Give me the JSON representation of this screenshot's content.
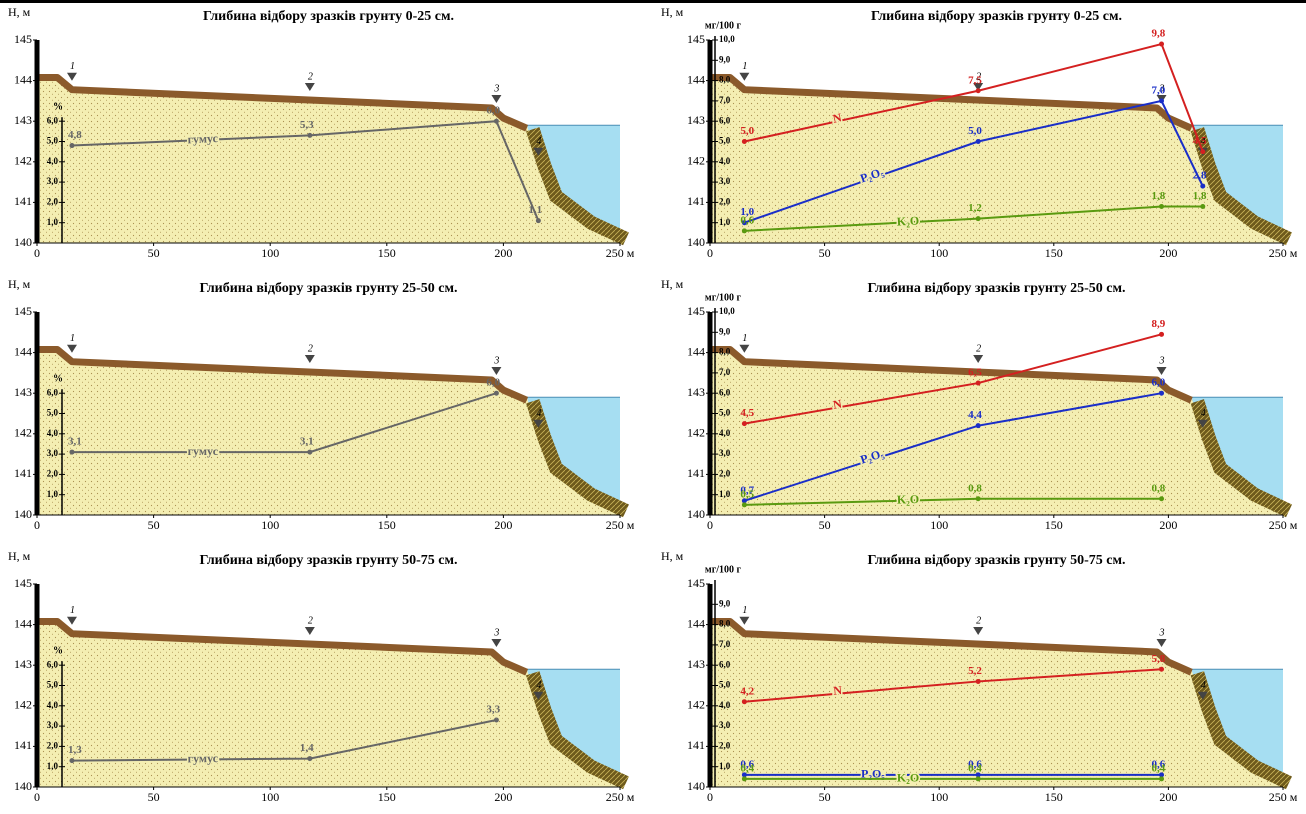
{
  "chart_data": [
    {
      "type": "line",
      "title": "Глибина відбору зразків грунту 0-25 см.",
      "y_label": "Н, м",
      "y2_label": "%",
      "xlim": [
        0,
        250
      ],
      "xticks": [
        0,
        50,
        100,
        150,
        200,
        {
          "value": 250,
          "label": "250 м"
        }
      ],
      "ylim": [
        140,
        145
      ],
      "yticks": [
        140,
        141,
        142,
        143,
        144,
        145
      ],
      "y2lim": [
        0,
        6
      ],
      "y2ticks": [
        {
          "value": 1,
          "label": "1,0"
        },
        {
          "value": 2,
          "label": "2,0"
        },
        {
          "value": 3,
          "label": "3,0"
        },
        {
          "value": 4,
          "label": "4,0"
        },
        {
          "value": 5,
          "label": "5,0"
        },
        {
          "value": 6,
          "label": "6,0"
        }
      ],
      "stations": [
        {
          "label": "1",
          "x": 15
        },
        {
          "label": "2",
          "x": 117
        },
        {
          "label": "3",
          "x": 197
        },
        {
          "label": "4",
          "x": 215
        }
      ],
      "x": [
        15,
        117,
        197,
        215
      ],
      "series": [
        {
          "name": "гумус",
          "color": "#666666",
          "axis": "y2",
          "values": [
            4.8,
            5.3,
            6.0,
            1.1
          ],
          "value_labels": [
            "4,8",
            "5,3",
            "6,0",
            "1,1"
          ]
        }
      ]
    },
    {
      "type": "line",
      "title": "Глибина відбору зразків грунту 25-50 см.",
      "y_label": "Н, м",
      "y2_label": "%",
      "xlim": [
        0,
        250
      ],
      "xticks": [
        0,
        50,
        100,
        150,
        200,
        {
          "value": 250,
          "label": "250 м"
        }
      ],
      "ylim": [
        140,
        145
      ],
      "yticks": [
        140,
        141,
        142,
        143,
        144,
        145
      ],
      "y2lim": [
        0,
        6
      ],
      "y2ticks": [
        {
          "value": 1,
          "label": "1,0"
        },
        {
          "value": 2,
          "label": "2,0"
        },
        {
          "value": 3,
          "label": "3,0"
        },
        {
          "value": 4,
          "label": "4,0"
        },
        {
          "value": 5,
          "label": "5,0"
        },
        {
          "value": 6,
          "label": "6,0"
        }
      ],
      "stations": [
        {
          "label": "1",
          "x": 15
        },
        {
          "label": "2",
          "x": 117
        },
        {
          "label": "3",
          "x": 197
        },
        {
          "label": "4",
          "x": 215
        }
      ],
      "x": [
        15,
        117,
        197
      ],
      "series": [
        {
          "name": "гумус",
          "color": "#666666",
          "axis": "y2",
          "values": [
            3.1,
            3.1,
            6.0
          ],
          "value_labels": [
            "3,1",
            "3,1",
            "6,0"
          ]
        }
      ]
    },
    {
      "type": "line",
      "title": "Глибина відбору зразків грунту 50-75 см.",
      "y_label": "Н, м",
      "y2_label": "%",
      "xlim": [
        0,
        250
      ],
      "xticks": [
        0,
        50,
        100,
        150,
        200,
        {
          "value": 250,
          "label": "250 м"
        }
      ],
      "ylim": [
        140,
        145
      ],
      "yticks": [
        140,
        141,
        142,
        143,
        144,
        145
      ],
      "y2lim": [
        0,
        6
      ],
      "y2ticks": [
        {
          "value": 1,
          "label": "1,0"
        },
        {
          "value": 2,
          "label": "2,0"
        },
        {
          "value": 3,
          "label": "3,0"
        },
        {
          "value": 4,
          "label": "4,0"
        },
        {
          "value": 5,
          "label": "5,0"
        },
        {
          "value": 6,
          "label": "6,0"
        }
      ],
      "stations": [
        {
          "label": "1",
          "x": 15
        },
        {
          "label": "2",
          "x": 117
        },
        {
          "label": "3",
          "x": 197
        },
        {
          "label": "4",
          "x": 215
        }
      ],
      "x": [
        15,
        117,
        197
      ],
      "series": [
        {
          "name": "гумус",
          "color": "#666666",
          "axis": "y2",
          "values": [
            1.3,
            1.4,
            3.3
          ],
          "value_labels": [
            "1,3",
            "1,4",
            "3,3"
          ]
        }
      ]
    },
    {
      "type": "line",
      "title": "Глибина відбору зразків грунту 0-25 см.",
      "y_label": "Н, м",
      "y2_label": "мг/100 г",
      "xlim": [
        0,
        250
      ],
      "xticks": [
        0,
        50,
        100,
        150,
        200,
        {
          "value": 250,
          "label": "250 м"
        }
      ],
      "ylim": [
        140,
        145
      ],
      "yticks": [
        140,
        141,
        142,
        143,
        144,
        145
      ],
      "y2lim": [
        0,
        10
      ],
      "y2ticks": [
        {
          "value": 1,
          "label": "1,0"
        },
        {
          "value": 2,
          "label": "2,0"
        },
        {
          "value": 3,
          "label": "3,0"
        },
        {
          "value": 4,
          "label": "4,0"
        },
        {
          "value": 5,
          "label": "5,0"
        },
        {
          "value": 6,
          "label": "6,0"
        },
        {
          "value": 7,
          "label": "7,0"
        },
        {
          "value": 8,
          "label": "8,0"
        },
        {
          "value": 9,
          "label": "9,0"
        },
        {
          "value": 10,
          "label": "10,0"
        }
      ],
      "stations": [
        {
          "label": "1",
          "x": 15
        },
        {
          "label": "2",
          "x": 117
        },
        {
          "label": "3",
          "x": 197
        },
        {
          "label": "4",
          "x": 215
        }
      ],
      "x": [
        15,
        117,
        197,
        215
      ],
      "series": [
        {
          "name": "N",
          "color": "#d42020",
          "axis": "y2",
          "values": [
            5.0,
            7.5,
            9.8,
            4.5
          ],
          "value_labels": [
            "5,0",
            "7,5",
            "9,8",
            "4,5"
          ]
        },
        {
          "name": "P₂O₅",
          "color": "#1a2ec8",
          "axis": "y2",
          "values": [
            1.0,
            5.0,
            7.0,
            2.8
          ],
          "value_labels": [
            "1,0",
            "5,0",
            "7,0",
            "2,8"
          ]
        },
        {
          "name": "K₂O",
          "color": "#5a9a10",
          "axis": "y2",
          "values": [
            0.6,
            1.2,
            1.8,
            1.8
          ],
          "value_labels": [
            "0,6",
            "1,2",
            "1,8",
            "1,8"
          ]
        }
      ]
    },
    {
      "type": "line",
      "title": "Глибина відбору зразків грунту 25-50 см.",
      "y_label": "Н, м",
      "y2_label": "мг/100 г",
      "xlim": [
        0,
        250
      ],
      "xticks": [
        0,
        50,
        100,
        150,
        200,
        {
          "value": 250,
          "label": "250 м"
        }
      ],
      "ylim": [
        140,
        145
      ],
      "yticks": [
        140,
        141,
        142,
        143,
        144,
        145
      ],
      "y2lim": [
        0,
        10
      ],
      "y2ticks": [
        {
          "value": 1,
          "label": "1,0"
        },
        {
          "value": 2,
          "label": "2,0"
        },
        {
          "value": 3,
          "label": "3,0"
        },
        {
          "value": 4,
          "label": "4,0"
        },
        {
          "value": 5,
          "label": "5,0"
        },
        {
          "value": 6,
          "label": "6,0"
        },
        {
          "value": 7,
          "label": "7,0"
        },
        {
          "value": 8,
          "label": "8,0"
        },
        {
          "value": 9,
          "label": "9,0"
        },
        {
          "value": 10,
          "label": "10,0"
        }
      ],
      "stations": [
        {
          "label": "1",
          "x": 15
        },
        {
          "label": "2",
          "x": 117
        },
        {
          "label": "3",
          "x": 197
        },
        {
          "label": "4",
          "x": 215
        }
      ],
      "x": [
        15,
        117,
        197
      ],
      "series": [
        {
          "name": "N",
          "color": "#d42020",
          "axis": "y2",
          "values": [
            4.5,
            6.5,
            8.9
          ],
          "value_labels": [
            "4,5",
            "6,5",
            "8,9"
          ]
        },
        {
          "name": "P₂O₅",
          "color": "#1a2ec8",
          "axis": "y2",
          "values": [
            0.7,
            4.4,
            6.0
          ],
          "value_labels": [
            "0,7",
            "4,4",
            "6,0"
          ]
        },
        {
          "name": "K₂O",
          "color": "#5a9a10",
          "axis": "y2",
          "values": [
            0.5,
            0.8,
            0.8
          ],
          "value_labels": [
            "0,5",
            "0,8",
            "0,8"
          ]
        }
      ]
    },
    {
      "type": "line",
      "title": "Глибина відбору зразків грунту 50-75 см.",
      "y_label": "Н, м",
      "y2_label": "мг/100 г",
      "xlim": [
        0,
        250
      ],
      "xticks": [
        0,
        50,
        100,
        150,
        200,
        {
          "value": 250,
          "label": "250 м"
        }
      ],
      "ylim": [
        140,
        145
      ],
      "yticks": [
        140,
        141,
        142,
        143,
        144,
        145
      ],
      "y2lim": [
        0,
        10
      ],
      "y2ticks": [
        {
          "value": 1,
          "label": "1,0"
        },
        {
          "value": 2,
          "label": "2,0"
        },
        {
          "value": 3,
          "label": "3,0"
        },
        {
          "value": 4,
          "label": "4,0"
        },
        {
          "value": 5,
          "label": "5,0"
        },
        {
          "value": 6,
          "label": "6,0"
        },
        {
          "value": 7,
          "label": "7,0"
        },
        {
          "value": 8,
          "label": "8,0"
        },
        {
          "value": 9,
          "label": "9,0"
        }
      ],
      "stations": [
        {
          "label": "1",
          "x": 15
        },
        {
          "label": "2",
          "x": 117
        },
        {
          "label": "3",
          "x": 197
        },
        {
          "label": "4",
          "x": 215
        }
      ],
      "x": [
        15,
        117,
        197
      ],
      "series": [
        {
          "name": "N",
          "color": "#d42020",
          "axis": "y2",
          "values": [
            4.2,
            5.2,
            5.8
          ],
          "value_labels": [
            "4,2",
            "5,2",
            "5,8"
          ]
        },
        {
          "name": "P₂O₅",
          "color": "#1a2ec8",
          "axis": "y2",
          "values": [
            0.6,
            0.6,
            0.6
          ],
          "value_labels": [
            "0,6",
            "0,6",
            "0,6"
          ]
        },
        {
          "name": "K₂O",
          "color": "#5a9a10",
          "axis": "y2",
          "values": [
            0.4,
            0.4,
            0.4
          ],
          "value_labels": [
            "0,4",
            "0,4",
            "0,4"
          ]
        }
      ]
    }
  ]
}
